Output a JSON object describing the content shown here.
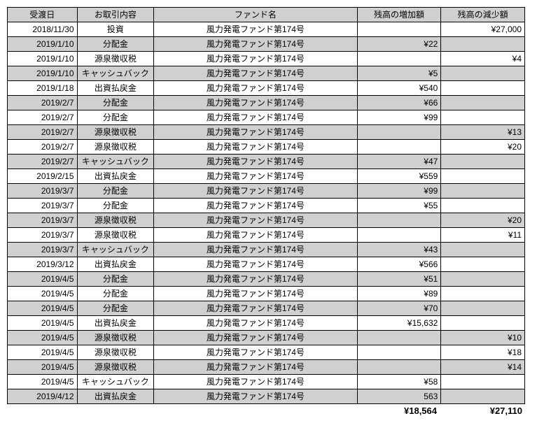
{
  "table": {
    "columns": [
      "受渡日",
      "お取引内容",
      "ファンド名",
      "残高の増加額",
      "残高の減少額"
    ],
    "fund_name": "風力発電ファンド第174号",
    "rows": [
      {
        "date": "2018/11/30",
        "type": "投資",
        "inc": "",
        "dec": "¥27,000",
        "shade": false
      },
      {
        "date": "2019/1/10",
        "type": "分配金",
        "inc": "¥22",
        "dec": "",
        "shade": true
      },
      {
        "date": "2019/1/10",
        "type": "源泉徴収税",
        "inc": "",
        "dec": "¥4",
        "shade": false
      },
      {
        "date": "2019/1/10",
        "type": "キャッシュバック",
        "inc": "¥5",
        "dec": "",
        "shade": true
      },
      {
        "date": "2019/1/18",
        "type": "出資払戻金",
        "inc": "¥540",
        "dec": "",
        "shade": false
      },
      {
        "date": "2019/2/7",
        "type": "分配金",
        "inc": "¥66",
        "dec": "",
        "shade": true
      },
      {
        "date": "2019/2/7",
        "type": "分配金",
        "inc": "¥99",
        "dec": "",
        "shade": false
      },
      {
        "date": "2019/2/7",
        "type": "源泉徴収税",
        "inc": "",
        "dec": "¥13",
        "shade": true
      },
      {
        "date": "2019/2/7",
        "type": "源泉徴収税",
        "inc": "",
        "dec": "¥20",
        "shade": false
      },
      {
        "date": "2019/2/7",
        "type": "キャッシュバック",
        "inc": "¥47",
        "dec": "",
        "shade": true
      },
      {
        "date": "2019/2/15",
        "type": "出資払戻金",
        "inc": "¥559",
        "dec": "",
        "shade": false
      },
      {
        "date": "2019/3/7",
        "type": "分配金",
        "inc": "¥99",
        "dec": "",
        "shade": true
      },
      {
        "date": "2019/3/7",
        "type": "分配金",
        "inc": "¥55",
        "dec": "",
        "shade": false
      },
      {
        "date": "2019/3/7",
        "type": "源泉徴収税",
        "inc": "",
        "dec": "¥20",
        "shade": true
      },
      {
        "date": "2019/3/7",
        "type": "源泉徴収税",
        "inc": "",
        "dec": "¥11",
        "shade": false
      },
      {
        "date": "2019/3/7",
        "type": "キャッシュバック",
        "inc": "¥43",
        "dec": "",
        "shade": true
      },
      {
        "date": "2019/3/12",
        "type": "出資払戻金",
        "inc": "¥566",
        "dec": "",
        "shade": false
      },
      {
        "date": "2019/4/5",
        "type": "分配金",
        "inc": "¥51",
        "dec": "",
        "shade": true
      },
      {
        "date": "2019/4/5",
        "type": "分配金",
        "inc": "¥89",
        "dec": "",
        "shade": false
      },
      {
        "date": "2019/4/5",
        "type": "分配金",
        "inc": "¥70",
        "dec": "",
        "shade": true
      },
      {
        "date": "2019/4/5",
        "type": "出資払戻金",
        "inc": "¥15,632",
        "dec": "",
        "shade": false
      },
      {
        "date": "2019/4/5",
        "type": "源泉徴収税",
        "inc": "",
        "dec": "¥10",
        "shade": true
      },
      {
        "date": "2019/4/5",
        "type": "源泉徴収税",
        "inc": "",
        "dec": "¥18",
        "shade": false
      },
      {
        "date": "2019/4/5",
        "type": "源泉徴収税",
        "inc": "",
        "dec": "¥14",
        "shade": true
      },
      {
        "date": "2019/4/5",
        "type": "キャッシュバック",
        "inc": "¥58",
        "dec": "",
        "shade": false
      },
      {
        "date": "2019/4/12",
        "type": "出資払戻金",
        "inc": "563",
        "dec": "",
        "shade": true
      }
    ],
    "totals": {
      "inc": "¥18,564",
      "dec": "¥27,110"
    }
  }
}
